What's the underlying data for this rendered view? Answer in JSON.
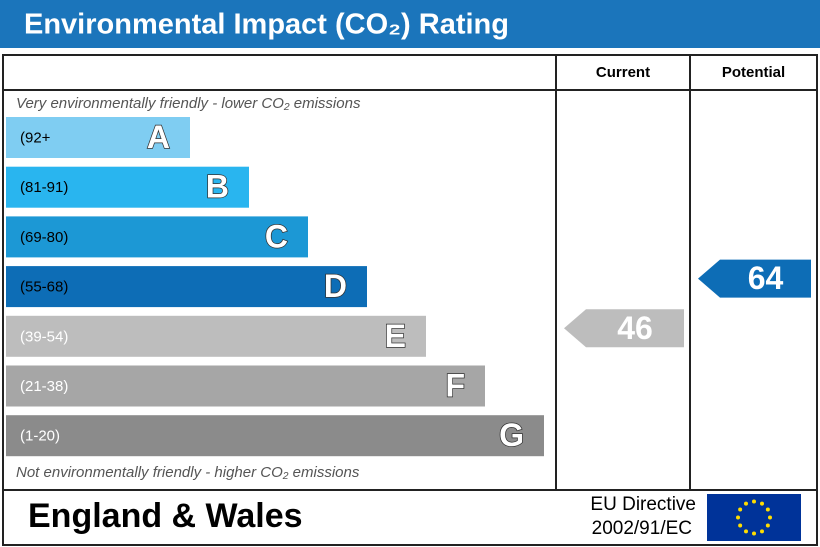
{
  "chart_data": {
    "type": "epc",
    "title": "Environmental Impact (CO₂) Rating",
    "top_note": "Very environmentally friendly - lower CO₂ emissions",
    "bottom_note": "Not environmentally friendly - higher CO₂ emissions",
    "bands": [
      {
        "range": "(92+",
        "letter": "A",
        "color": "#7fcdf2"
      },
      {
        "range": "(81-91)",
        "letter": "B",
        "color": "#29b5ef"
      },
      {
        "range": "(69-80)",
        "letter": "C",
        "color": "#1c98d5"
      },
      {
        "range": "(55-68)",
        "letter": "D",
        "color": "#0d6db6"
      },
      {
        "range": "(39-54)",
        "letter": "E",
        "color": "#bdbdbd"
      },
      {
        "range": "(21-38)",
        "letter": "F",
        "color": "#a6a6a6"
      },
      {
        "range": "(1-20)",
        "letter": "G",
        "color": "#8b8b8b"
      }
    ],
    "series": [
      {
        "name": "Current",
        "value": 46,
        "color": "#bdbdbd"
      },
      {
        "name": "Potential",
        "value": 64,
        "color": "#0d6db6"
      }
    ],
    "region": "England & Wales",
    "directive": [
      "EU Directive",
      "2002/91/EC"
    ]
  }
}
